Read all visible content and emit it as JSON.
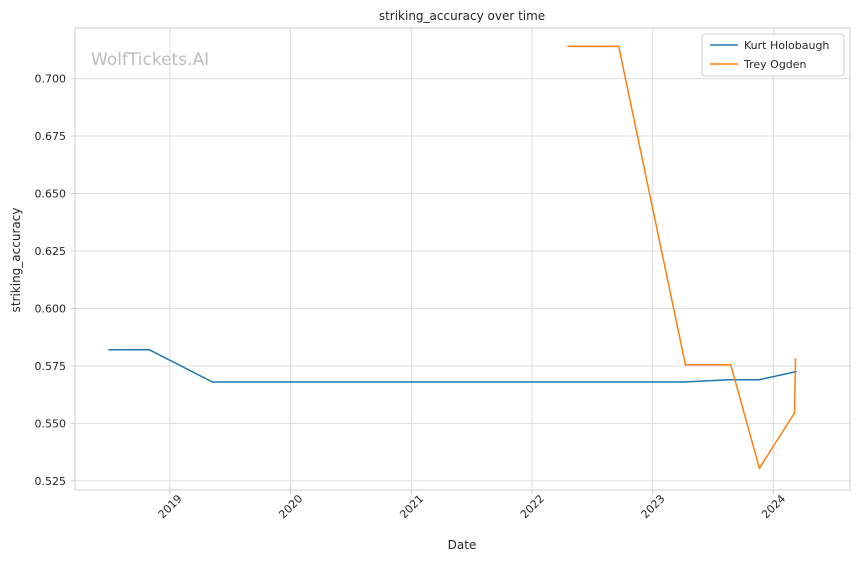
{
  "chart_data": {
    "type": "line",
    "title": "striking_accuracy over time",
    "xlabel": "Date",
    "ylabel": "striking_accuracy",
    "watermark": "WolfTickets.AI",
    "x_ticks": [
      "2019",
      "2020",
      "2021",
      "2022",
      "2023",
      "2024"
    ],
    "y_ticks": [
      "0.525",
      "0.550",
      "0.575",
      "0.600",
      "0.625",
      "0.650",
      "0.675",
      "0.700"
    ],
    "xlim": [
      "2018-03-20",
      "2024-08-20"
    ],
    "ylim": [
      0.521,
      0.722
    ],
    "grid": true,
    "legend_position": "top-right",
    "series": [
      {
        "name": "Kurt Holobaugh",
        "color": "#1f77b4",
        "points": [
          [
            "2018-07-01",
            0.582
          ],
          [
            "2018-10-31",
            0.582
          ],
          [
            "2019-05-10",
            0.568
          ],
          [
            "2023-04-05",
            0.568
          ],
          [
            "2023-08-20",
            0.569
          ],
          [
            "2023-11-20",
            0.569
          ],
          [
            "2024-03-10",
            0.5725
          ]
        ]
      },
      {
        "name": "Trey Ogden",
        "color": "#ff7f0e",
        "points": [
          [
            "2022-04-20",
            0.714
          ],
          [
            "2022-09-20",
            0.714
          ],
          [
            "2023-04-10",
            0.5755
          ],
          [
            "2023-08-25",
            0.5755
          ],
          [
            "2023-11-20",
            0.5305
          ],
          [
            "2024-03-05",
            0.5545
          ],
          [
            "2024-03-08",
            0.578
          ]
        ]
      }
    ]
  }
}
